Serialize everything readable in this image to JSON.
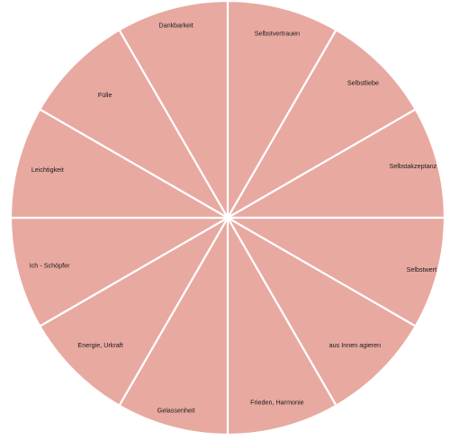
{
  "wheel": {
    "fill_color": "#e8a9a1",
    "divider_color": "#ffffff",
    "segments": [
      "Selbstvertrauen",
      "Selbstliebe",
      "Selbstakzeptanz",
      "Selbstwert",
      "aus Innen agieren",
      "Frieden, Harmonie",
      "Gelassenheit",
      "Energie, Urkraft",
      "Ich - Schöpfer",
      "Leichtigkeit",
      "Fülle",
      "Dankbarkeit"
    ]
  }
}
